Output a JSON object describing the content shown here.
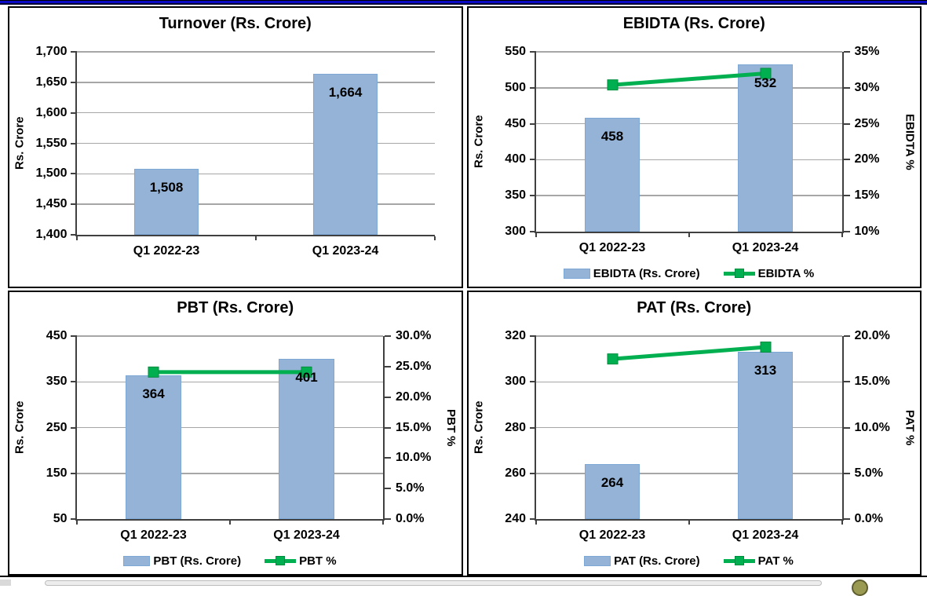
{
  "colors": {
    "top_bar_blue": "#0A0AC4",
    "bar_fill": "#95B3D7",
    "line_green": "#00B050",
    "marker_border": "#008C3F",
    "gridline": "#A6A6A6",
    "axis_line": "#404040",
    "panel_border": "#000000",
    "text": "#000000"
  },
  "footer": {
    "scrollbar_track": true,
    "icon": "partial-round-icon"
  },
  "chart_data": [
    {
      "type": "bar",
      "title": "Turnover (Rs. Crore)",
      "ylabel_left": "Rs. Crore",
      "ylabel_right": null,
      "categories": [
        "Q1 2022-23",
        "Q1 2023-24"
      ],
      "bar_values": [
        1508,
        1664
      ],
      "bar_labels": [
        "1,508",
        "1,664"
      ],
      "left_axis": {
        "min": 1400,
        "max": 1700,
        "tick_labels": [
          "1,400",
          "1,450",
          "1,500",
          "1,550",
          "1,600",
          "1,650",
          "1,700"
        ]
      },
      "right_axis": null,
      "line_values": null,
      "legend": null,
      "grid": true,
      "legend_position": null
    },
    {
      "type": "bar+line",
      "title": "EBIDTA (Rs. Crore)",
      "ylabel_left": "Rs. Crore",
      "ylabel_right": "EBIDTA %",
      "categories": [
        "Q1 2022-23",
        "Q1 2023-24"
      ],
      "bar_values": [
        458,
        532
      ],
      "bar_labels": [
        "458",
        "532"
      ],
      "left_axis": {
        "min": 300,
        "max": 550,
        "tick_labels": [
          "300",
          "350",
          "400",
          "450",
          "500",
          "550"
        ]
      },
      "right_axis": {
        "min": 10,
        "max": 35,
        "tick_labels": [
          "10%",
          "15%",
          "20%",
          "25%",
          "30%",
          "35%"
        ]
      },
      "line_values": [
        30.4,
        32.0
      ],
      "legend": [
        {
          "swatch": "bar",
          "label": "EBIDTA (Rs. Crore)"
        },
        {
          "swatch": "line",
          "label": "EBIDTA %"
        }
      ],
      "grid": true,
      "legend_position": "bottom"
    },
    {
      "type": "bar+line",
      "title": "PBT (Rs. Crore)",
      "ylabel_left": "Rs. Crore",
      "ylabel_right": "PBT %",
      "categories": [
        "Q1 2022-23",
        "Q1 2023-24"
      ],
      "bar_values": [
        364,
        401
      ],
      "bar_labels": [
        "364",
        "401"
      ],
      "left_axis": {
        "min": 50,
        "max": 450,
        "tick_labels": [
          "50",
          "150",
          "250",
          "350",
          "450"
        ]
      },
      "right_axis": {
        "min": 0,
        "max": 30,
        "tick_labels": [
          "0.0%",
          "5.0%",
          "10.0%",
          "15.0%",
          "20.0%",
          "25.0%",
          "30.0%"
        ]
      },
      "line_values": [
        24.1,
        24.1
      ],
      "legend": [
        {
          "swatch": "bar",
          "label": "PBT (Rs. Crore)"
        },
        {
          "swatch": "line",
          "label": "PBT %"
        }
      ],
      "grid": true,
      "legend_position": "bottom"
    },
    {
      "type": "bar+line",
      "title": "PAT (Rs. Crore)",
      "ylabel_left": "Rs. Crore",
      "ylabel_right": "PAT %",
      "categories": [
        "Q1 2022-23",
        "Q1 2023-24"
      ],
      "bar_values": [
        264,
        313
      ],
      "bar_labels": [
        "264",
        "313"
      ],
      "left_axis": {
        "min": 240,
        "max": 320,
        "tick_labels": [
          "240",
          "260",
          "280",
          "300",
          "320"
        ]
      },
      "right_axis": {
        "min": 0,
        "max": 20,
        "tick_labels": [
          "0.0%",
          "5.0%",
          "10.0%",
          "15.0%",
          "20.0%"
        ]
      },
      "line_values": [
        17.5,
        18.8
      ],
      "legend": [
        {
          "swatch": "bar",
          "label": "PAT (Rs. Crore)"
        },
        {
          "swatch": "line",
          "label": "PAT %"
        }
      ],
      "grid": true,
      "legend_position": "bottom"
    }
  ]
}
